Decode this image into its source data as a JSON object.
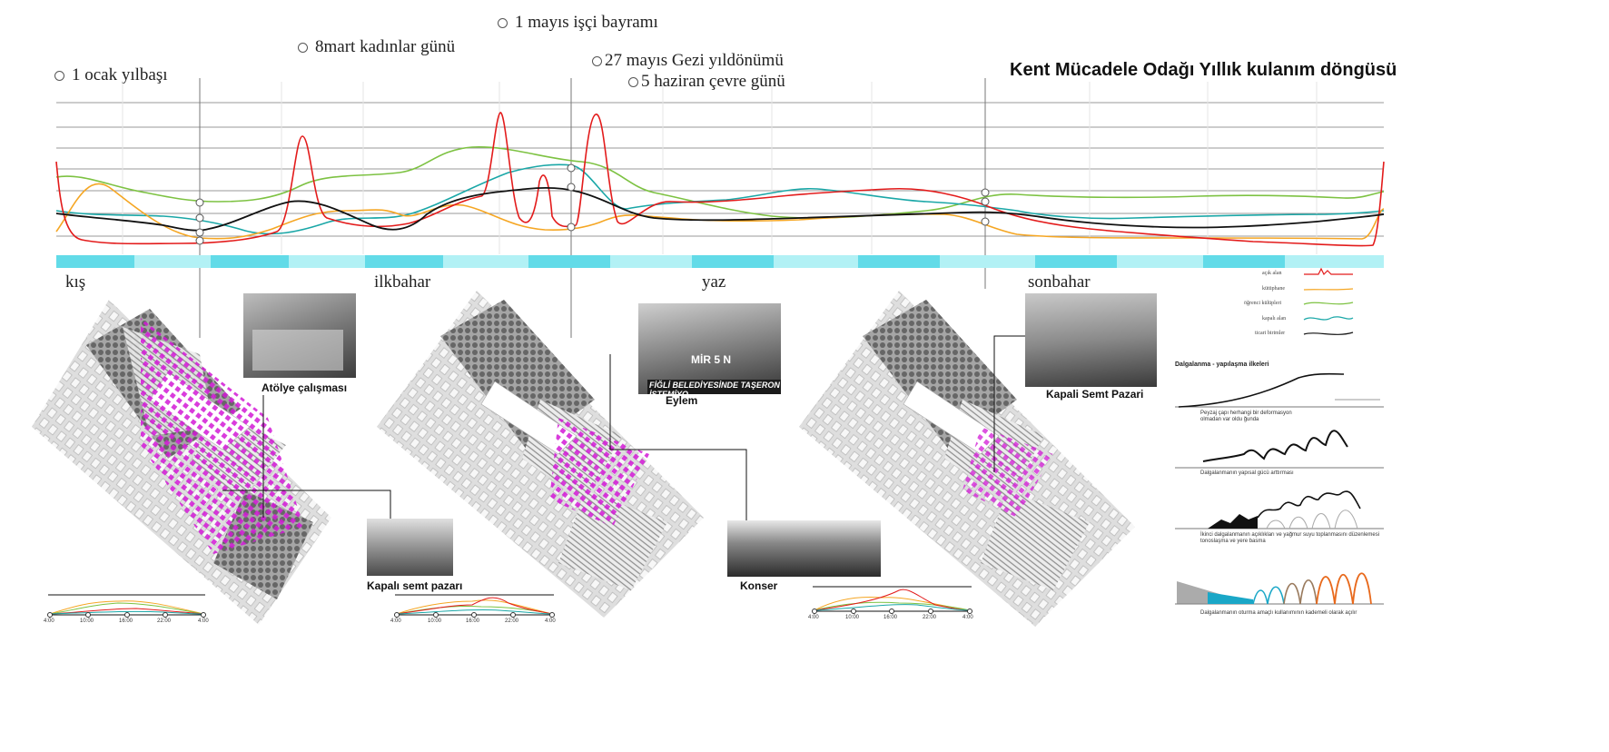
{
  "title": "Kent Mücadele Odağı Yıllık kulanım döngüsü",
  "events": [
    {
      "label": "1 ocak yılbaşı"
    },
    {
      "label": "8mart kadınlar günü"
    },
    {
      "label": "1 mayıs işçi bayramı"
    },
    {
      "label": "27 mayıs Gezi yıldönümü"
    },
    {
      "label": "5 haziran çevre günü"
    }
  ],
  "seasons": [
    "kış",
    "ilkbahar",
    "yaz",
    "sonbahar"
  ],
  "colors": {
    "acik_alan": "#e31b1b",
    "kutuphane": "#f5a623",
    "ogrenci": "#7dc242",
    "kapali": "#1aa7a7",
    "ticari": "#111111",
    "accent_cyan": "#6fe0ec",
    "magenta": "#d21ad6"
  },
  "legend": [
    {
      "label": "açık alan",
      "color": "#e31b1b"
    },
    {
      "label": "kütüphane",
      "color": "#f5a623"
    },
    {
      "label": "öğrenci külüpleri",
      "color": "#7dc242"
    },
    {
      "label": "kapalı alan",
      "color": "#1aa7a7"
    },
    {
      "label": "ticari birimler",
      "color": "#111111"
    }
  ],
  "photos": [
    {
      "caption": "Atölye çalışması"
    },
    {
      "caption": "Kapalı semt pazarı"
    },
    {
      "caption": "Eylem"
    },
    {
      "caption": "Konser"
    },
    {
      "caption": "Kapali Semt Pazari"
    }
  ],
  "photo_texts": {
    "eylem_banner": "FİĞLİ BELEDİYESİNDE TAŞERON İSTEMİYO",
    "eylem_sign": "MİR 5 N"
  },
  "principles": {
    "heading": "Dalgalanma - yapılaşma ilkeleri",
    "items": [
      {
        "text": "Peyzaj çapı herhangi bir deformasyon olmadan var oldu ğunda"
      },
      {
        "text": "Dalgalanmanın yapısal gücü arttırması"
      },
      {
        "text": "İkinci dalgalanmanın açıklıkları ve yağmur suyu toplanmasını düzenlemesi tonoslaşma ve yere basma"
      },
      {
        "text": "Dalgalanmanın oturma amaçlı kullanımının kademeli olarak açılır"
      }
    ]
  },
  "day_axis": [
    "4:00",
    "10:00",
    "16:00",
    "22:00",
    "4:00"
  ]
}
